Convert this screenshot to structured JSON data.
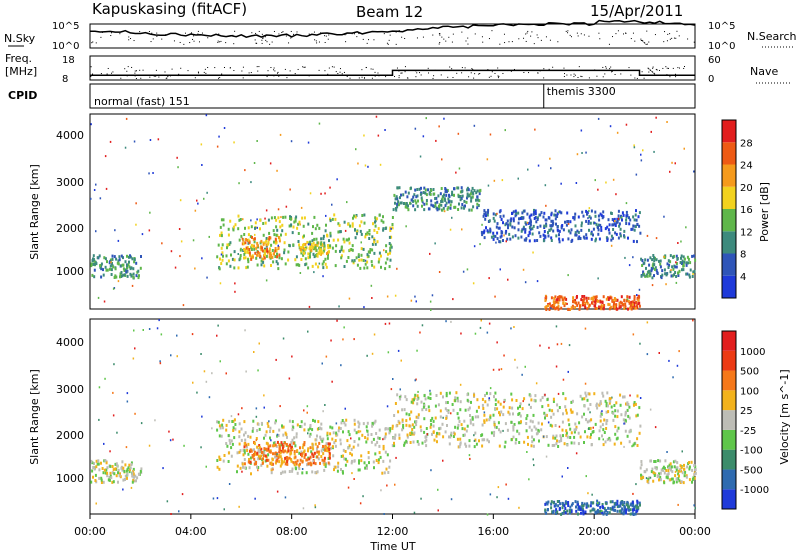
{
  "header": {
    "station": "Kapuskasing (fitACF)",
    "beam": "Beam 12",
    "date": "15/Apr/2011"
  },
  "chart_data": [
    {
      "type": "line",
      "panel": "noise",
      "left_label": "N.Sky",
      "right_label": "N.Search",
      "y_ticks_left": [
        "10^5",
        "10^0"
      ],
      "y_ticks_right": [
        "10^5",
        "10^0"
      ],
      "x_range_hours": [
        0,
        24
      ]
    },
    {
      "type": "line",
      "panel": "frequency",
      "left_label_line1": "Freq.",
      "left_label_line2": "[MHz]",
      "right_label": "Nave",
      "y_ticks_left": [
        "18",
        "8"
      ],
      "y_ticks_right": [
        "60",
        "0"
      ],
      "freq_steps": [
        {
          "from_hour": 0,
          "to_hour": 12,
          "mhz": 10
        },
        {
          "from_hour": 12,
          "to_hour": 21.8,
          "mhz": 12
        },
        {
          "from_hour": 21.8,
          "to_hour": 24,
          "mhz": 10
        }
      ]
    },
    {
      "type": "table",
      "panel": "cpid",
      "label": "CPID",
      "modes": [
        {
          "start_hour": 0,
          "name": "normal (fast) 151"
        },
        {
          "start_hour": 18,
          "name": "themis 3300"
        }
      ]
    },
    {
      "type": "heatmap",
      "panel": "power",
      "ylabel": "Slant Range [km]",
      "y_ticks": [
        "4000",
        "3000",
        "2000",
        "1000"
      ],
      "ylim": [
        180,
        4500
      ],
      "colorbar_label": "Power [dB]",
      "colorbar_ticks": [
        "28",
        "24",
        "20",
        "16",
        "12",
        "8",
        "4"
      ],
      "colors": [
        "#1f3ad9",
        "#2f55b8",
        "#3d8a7d",
        "#5fb64a",
        "#f2d21f",
        "#f59a1c",
        "#ee5a14",
        "#e21e1e"
      ],
      "echo_regions": [
        {
          "t_start": 0,
          "t_end": 2,
          "r_start": 900,
          "r_end": 1400,
          "level": 2
        },
        {
          "t_start": 5,
          "t_end": 12,
          "r_start": 1100,
          "r_end": 2300,
          "level": 3
        },
        {
          "t_start": 6,
          "t_end": 7.5,
          "r_start": 1300,
          "r_end": 1800,
          "level": 5
        },
        {
          "t_start": 8.3,
          "t_end": 9.5,
          "r_start": 1400,
          "r_end": 1700,
          "level": 4
        },
        {
          "t_start": 12,
          "t_end": 15.5,
          "r_start": 2400,
          "r_end": 2900,
          "level": 2
        },
        {
          "t_start": 15.5,
          "t_end": 21.8,
          "r_start": 1700,
          "r_end": 2400,
          "level": 1
        },
        {
          "t_start": 21.8,
          "t_end": 24,
          "r_start": 900,
          "r_end": 1400,
          "level": 2
        },
        {
          "t_start": 18,
          "t_end": 21.8,
          "r_start": 200,
          "r_end": 500,
          "level": 6
        }
      ]
    },
    {
      "type": "heatmap",
      "panel": "velocity",
      "ylabel": "Slant Range [km]",
      "y_ticks": [
        "4000",
        "3000",
        "2000",
        "1000"
      ],
      "ylim": [
        180,
        4500
      ],
      "colorbar_label": "Velocity [m s^-1]",
      "colorbar_ticks": [
        "1000",
        "500",
        "100",
        "25",
        "-25",
        "-100",
        "-500",
        "-1000"
      ],
      "colors": [
        "#1f3ad9",
        "#2f6bb0",
        "#3c8c6b",
        "#5fc64a",
        "#bdbdb6",
        "#f2b21c",
        "#f5781a",
        "#ec3a14",
        "#e21e1e"
      ],
      "echo_regions": [
        {
          "t_start": 0,
          "t_end": 2,
          "r_start": 900,
          "r_end": 1400,
          "level": 4
        },
        {
          "t_start": 5,
          "t_end": 12,
          "r_start": 1100,
          "r_end": 2300,
          "level": 4
        },
        {
          "t_start": 6,
          "t_end": 9.5,
          "r_start": 1300,
          "r_end": 1800,
          "level": 6
        },
        {
          "t_start": 12,
          "t_end": 21.8,
          "r_start": 1700,
          "r_end": 2900,
          "level": 4
        },
        {
          "t_start": 21.8,
          "t_end": 24,
          "r_start": 900,
          "r_end": 1400,
          "level": 4
        },
        {
          "t_start": 18,
          "t_end": 21.8,
          "r_start": 200,
          "r_end": 500,
          "level": 1
        }
      ]
    }
  ],
  "x_axis": {
    "ticks": [
      "00:00",
      "04:00",
      "08:00",
      "12:00",
      "16:00",
      "20:00",
      "00:00"
    ],
    "label": "Time UT",
    "xlim": [
      0,
      24
    ]
  }
}
